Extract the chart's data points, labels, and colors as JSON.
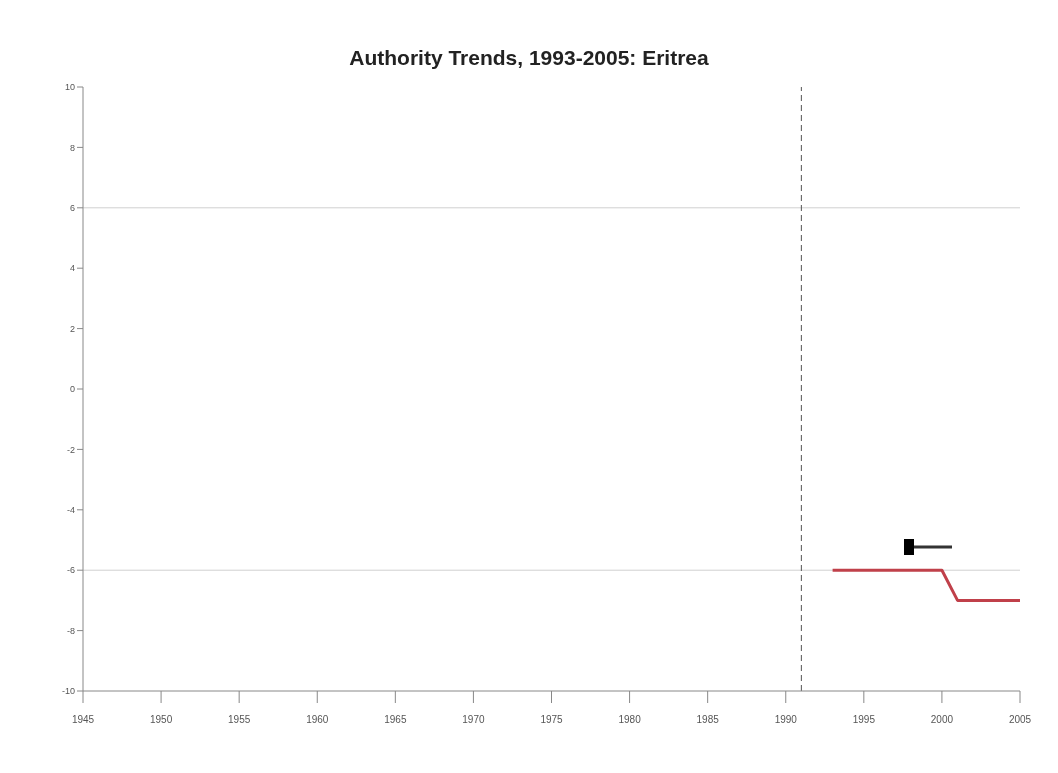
{
  "chart_data": {
    "type": "line",
    "title": "Authority Trends, 1993-2005: Eritrea",
    "x": [
      1993,
      1994,
      1995,
      1996,
      1997,
      1998,
      1999,
      2000,
      2001,
      2002,
      2003,
      2004,
      2005
    ],
    "series": [
      {
        "color": "#c0404a",
        "values": [
          -6,
          -6,
          -6,
          -6,
          -6,
          -6,
          -6,
          -6,
          -7,
          -7,
          -7,
          -7,
          -7
        ]
      }
    ],
    "xlim": [
      1945,
      2005
    ],
    "xticks": [
      1945,
      1950,
      1955,
      1960,
      1965,
      1970,
      1975,
      1980,
      1985,
      1990,
      1995,
      2000,
      2005
    ],
    "ylim": [
      -10,
      10
    ],
    "yticks": [
      -10,
      -8,
      -6,
      -4,
      -2,
      0,
      2,
      4,
      6,
      8,
      10
    ],
    "ref_lines": [
      {
        "axis": "y",
        "value": 6,
        "color": "#d0d0d0",
        "line_style": "solid"
      },
      {
        "axis": "y",
        "value": -6,
        "color": "#d0d0d0",
        "line_style": "solid"
      },
      {
        "axis": "x",
        "value": 1991,
        "color": "#555555",
        "line_style": "dashed"
      }
    ],
    "line_style": "solid"
  }
}
